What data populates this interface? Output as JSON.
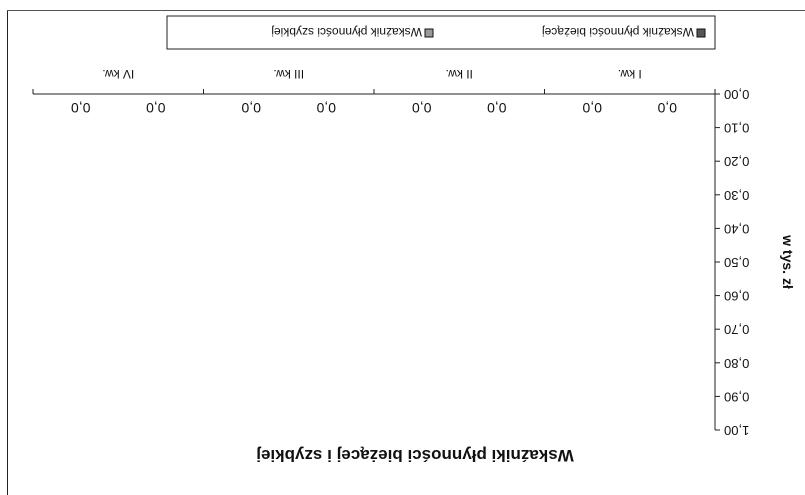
{
  "chart_data": {
    "type": "bar",
    "title": "Wskaźniki płynności bieżącej i szybkiej",
    "ylabel": "w tys. zł",
    "xlabel": "",
    "categories": [
      "I kw.",
      "II kw.",
      "III kw.",
      "IV kw."
    ],
    "series": [
      {
        "name": "Wskaźnik płynności bieżącej",
        "values": [
          0.0,
          0.0,
          0.0,
          0.0
        ]
      },
      {
        "name": "Wskaźnik płynności szybkiej",
        "values": [
          0.0,
          0.0,
          0.0,
          0.0
        ]
      }
    ],
    "value_labels": [
      [
        "0,0",
        "0,0",
        "0,0",
        "0,0"
      ],
      [
        "0,0",
        "0,0",
        "0,0",
        "0,0"
      ]
    ],
    "ylim": [
      0,
      1.0
    ],
    "yticks": [
      0.0,
      0.1,
      0.2,
      0.3,
      0.4,
      0.5,
      0.6,
      0.7,
      0.8,
      0.9,
      1.0
    ],
    "ytick_labels": [
      "0,00",
      "0,10",
      "0,20",
      "0,30",
      "0,40",
      "0,50",
      "0,60",
      "0,70",
      "0,80",
      "0,90",
      "1,00"
    ],
    "legend_position": "bottom",
    "grid": false,
    "orientation": "rotated-180"
  }
}
